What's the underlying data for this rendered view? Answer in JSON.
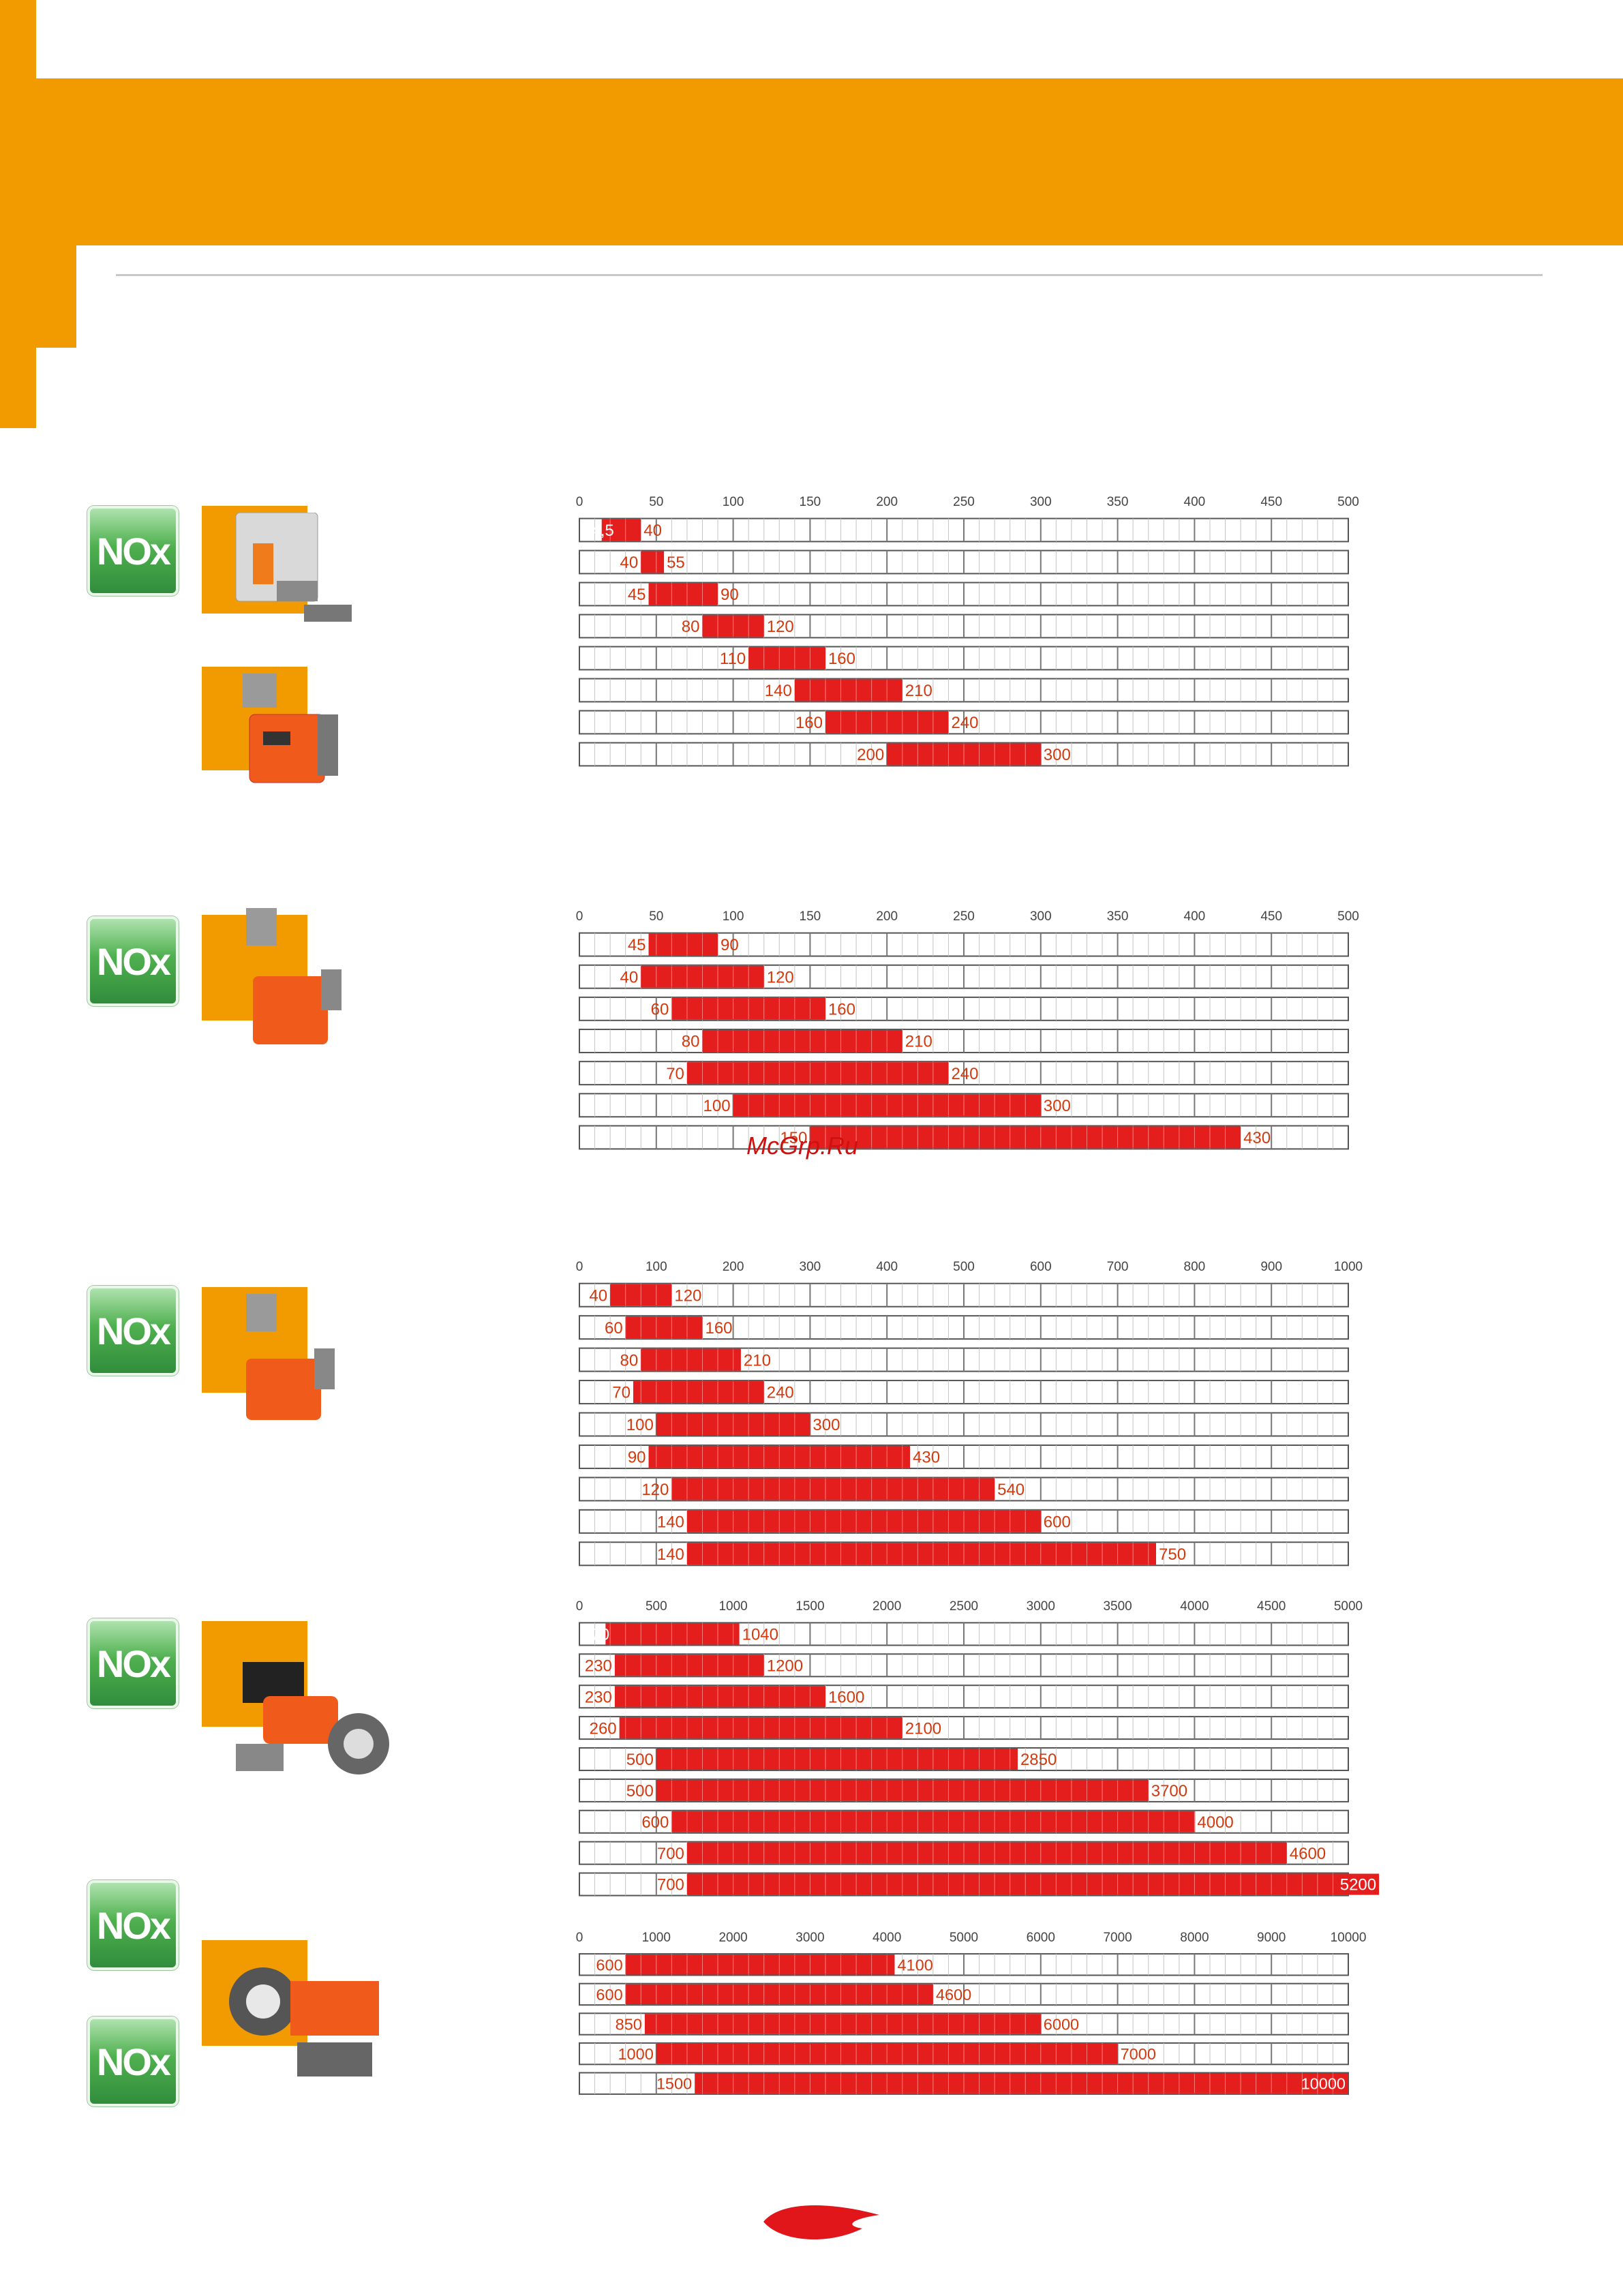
{
  "watermark": "McGrp.Ru",
  "colors": {
    "brand_orange": "#f29b00",
    "bar_red": "#e41d1d",
    "label_red": "#d4380d",
    "nox_green": "#3a9a3e"
  },
  "nox_badge_label": "NOx",
  "logo_icon": "flame-icon",
  "chart_data": [
    {
      "type": "bar",
      "subtype": "floating-range",
      "x_ticks": [
        "0",
        "50",
        "100",
        "150",
        "200",
        "250",
        "300",
        "350",
        "400",
        "450",
        "500"
      ],
      "xlim": [
        0,
        500
      ],
      "series": [
        {
          "values": [
            [
              14.5,
              40
            ],
            [
              40,
              55
            ],
            [
              45,
              90
            ],
            [
              80,
              120
            ],
            [
              110,
              160
            ],
            [
              140,
              210
            ],
            [
              160,
              240
            ],
            [
              200,
              300
            ]
          ]
        }
      ],
      "labels": [
        [
          "14,5",
          "40"
        ],
        [
          "40",
          "55"
        ],
        [
          "45",
          "90"
        ],
        [
          "80",
          "120"
        ],
        [
          "110",
          "160"
        ],
        [
          "140",
          "210"
        ],
        [
          "160",
          "240"
        ],
        [
          "200",
          "300"
        ]
      ]
    },
    {
      "type": "bar",
      "subtype": "floating-range",
      "x_ticks": [
        "0",
        "50",
        "100",
        "150",
        "200",
        "250",
        "300",
        "350",
        "400",
        "450",
        "500"
      ],
      "xlim": [
        0,
        500
      ],
      "series": [
        {
          "values": [
            [
              45,
              90
            ],
            [
              40,
              120
            ],
            [
              60,
              160
            ],
            [
              80,
              210
            ],
            [
              70,
              240
            ],
            [
              100,
              300
            ],
            [
              150,
              430
            ]
          ]
        }
      ],
      "labels": [
        [
          "45",
          "90"
        ],
        [
          "40",
          "120"
        ],
        [
          "60",
          "160"
        ],
        [
          "80",
          "210"
        ],
        [
          "70",
          "240"
        ],
        [
          "100",
          "300"
        ],
        [
          "150",
          "430"
        ]
      ]
    },
    {
      "type": "bar",
      "subtype": "floating-range",
      "x_ticks": [
        "0",
        "100",
        "200",
        "300",
        "400",
        "500",
        "600",
        "700",
        "800",
        "900",
        "1000"
      ],
      "xlim": [
        0,
        1000
      ],
      "series": [
        {
          "values": [
            [
              40,
              120
            ],
            [
              60,
              160
            ],
            [
              80,
              210
            ],
            [
              70,
              240
            ],
            [
              100,
              300
            ],
            [
              90,
              430
            ],
            [
              120,
              540
            ],
            [
              140,
              600
            ],
            [
              140,
              750
            ]
          ]
        }
      ],
      "labels": [
        [
          "40",
          "120"
        ],
        [
          "60",
          "160"
        ],
        [
          "80",
          "210"
        ],
        [
          "70",
          "240"
        ],
        [
          "100",
          "300"
        ],
        [
          "90",
          "430"
        ],
        [
          "120",
          "540"
        ],
        [
          "140",
          "600"
        ],
        [
          "140",
          "750"
        ]
      ]
    },
    {
      "type": "bar",
      "subtype": "floating-range",
      "x_ticks": [
        "0",
        "500",
        "1000",
        "1500",
        "2000",
        "2500",
        "3000",
        "3500",
        "4000",
        "4500",
        "5000"
      ],
      "xlim": [
        0,
        5000
      ],
      "series": [
        {
          "values": [
            [
              170,
              1040
            ],
            [
              230,
              1200
            ],
            [
              230,
              1600
            ],
            [
              260,
              2100
            ],
            [
              500,
              2850
            ],
            [
              500,
              3700
            ],
            [
              600,
              4000
            ],
            [
              700,
              4600
            ],
            [
              700,
              5200
            ]
          ]
        }
      ],
      "labels": [
        [
          "170",
          "1040"
        ],
        [
          "230",
          "1200"
        ],
        [
          "230",
          "1600"
        ],
        [
          "260",
          "2100"
        ],
        [
          "500",
          "2850"
        ],
        [
          "500",
          "3700"
        ],
        [
          "600",
          "4000"
        ],
        [
          "700",
          "4600"
        ],
        [
          "700",
          "5200"
        ]
      ]
    },
    {
      "type": "bar",
      "subtype": "floating-range",
      "x_ticks": [
        "0",
        "1000",
        "2000",
        "3000",
        "4000",
        "5000",
        "6000",
        "7000",
        "8000",
        "9000",
        "10000"
      ],
      "xlim": [
        0,
        10000
      ],
      "series": [
        {
          "values": [
            [
              600,
              4100
            ],
            [
              600,
              4600
            ],
            [
              850,
              6000
            ],
            [
              1000,
              7000
            ],
            [
              1500,
              10000
            ]
          ]
        }
      ],
      "labels": [
        [
          "600",
          "4100"
        ],
        [
          "600",
          "4600"
        ],
        [
          "850",
          "6000"
        ],
        [
          "1000",
          "7000"
        ],
        [
          "1500",
          "10000"
        ]
      ]
    }
  ]
}
